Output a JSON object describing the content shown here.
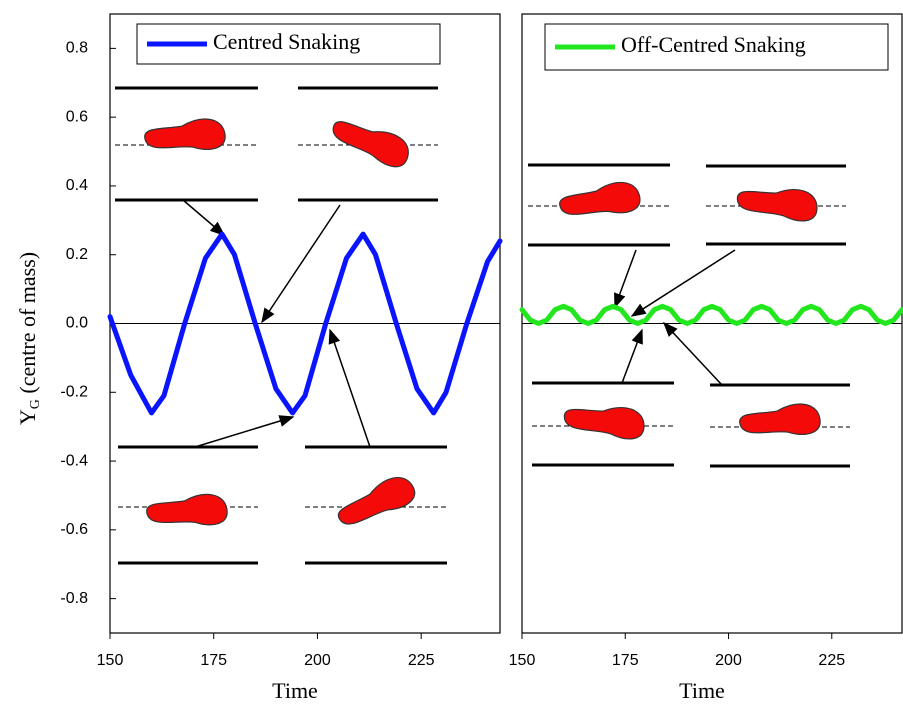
{
  "chart_data": [
    {
      "type": "line",
      "xlabel": "Time",
      "ylabel": "Y",
      "ylabel_sub": "G",
      "ylabel_rest": " (centre of mass)",
      "x": [
        150,
        155,
        160,
        163,
        168,
        173,
        177,
        180,
        185,
        190,
        194,
        197,
        202,
        207,
        211,
        214,
        219,
        224,
        228,
        231,
        236,
        241,
        244
      ],
      "series": [
        {
          "name": "Centred Snaking",
          "color": "#0a14ff",
          "values": [
            0.02,
            -0.15,
            -0.26,
            -0.21,
            0,
            0.19,
            0.26,
            0.2,
            0,
            -0.19,
            -0.26,
            -0.21,
            0,
            0.19,
            0.26,
            0.2,
            0,
            -0.19,
            -0.26,
            -0.2,
            0,
            0.18,
            0.24
          ]
        }
      ],
      "xlim": [
        150,
        244
      ],
      "ylim": [
        -0.9,
        0.9
      ],
      "xticks": [
        150,
        175,
        200,
        225
      ],
      "yticks": [
        -0.8,
        -0.6,
        -0.4,
        -0.2,
        {
          "value": 0,
          "label": "0.0"
        },
        0.2,
        0.4,
        0.6,
        0.8
      ],
      "hline": 0
    },
    {
      "type": "line",
      "xlabel": "Time",
      "x": [
        150,
        152,
        154,
        156,
        158,
        160,
        162,
        164,
        166,
        168,
        170,
        172,
        174,
        176,
        178,
        180,
        182,
        184,
        186,
        188,
        190,
        192,
        194,
        196,
        198,
        200,
        202,
        204,
        206,
        208,
        210,
        212,
        214,
        216,
        218,
        220,
        222,
        224,
        226,
        228,
        230,
        232,
        234,
        236,
        238,
        240,
        242
      ],
      "series": [
        {
          "name": "Off-Centred Snaking",
          "color": "#22e61e",
          "values": [
            0.04,
            0.01,
            0,
            0.01,
            0.04,
            0.05,
            0.04,
            0.01,
            0,
            0.01,
            0.04,
            0.05,
            0.04,
            0.01,
            0,
            0.01,
            0.04,
            0.05,
            0.04,
            0.01,
            0,
            0.01,
            0.04,
            0.05,
            0.04,
            0.01,
            0,
            0.01,
            0.04,
            0.05,
            0.04,
            0.01,
            0,
            0.01,
            0.04,
            0.05,
            0.04,
            0.01,
            0,
            0.01,
            0.04,
            0.05,
            0.04,
            0.01,
            0,
            0.01,
            0.04
          ]
        }
      ],
      "xlim": [
        150,
        242
      ],
      "ylim": [
        -0.9,
        0.9
      ],
      "xticks": [
        150,
        175,
        200,
        225
      ],
      "hline": 0
    }
  ]
}
